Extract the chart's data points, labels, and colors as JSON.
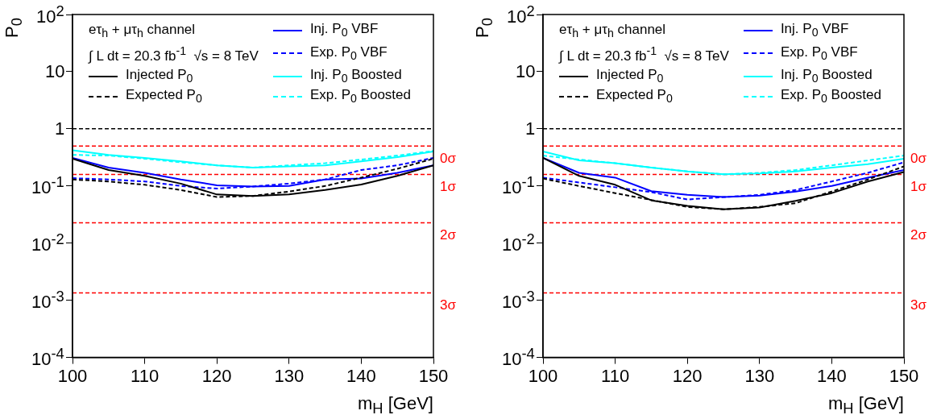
{
  "chart_data": [
    {
      "type": "line",
      "xlabel": "m$_{H}$ [GeV]",
      "ylabel": "P$_{0}$",
      "annotations": [
        "eτ$_{h}$ + μτ$_{h}$ channel",
        "∫ L dt = 20.3 fb$^{-1}$  √s = 8 TeV"
      ],
      "x": [
        100,
        105,
        110,
        115,
        120,
        125,
        130,
        135,
        140,
        145,
        150
      ],
      "xlim": [
        100,
        150
      ],
      "xticks": [
        100,
        110,
        120,
        130,
        140,
        150
      ],
      "ylim": [
        0.0001,
        100
      ],
      "yticks": [
        {
          "value": 0.0001,
          "label": "10$^{-4}$"
        },
        {
          "value": 0.001,
          "label": "10$^{-3}$"
        },
        {
          "value": 0.01,
          "label": "10$^{-2}$"
        },
        {
          "value": 0.1,
          "label": "10$^{-1}$"
        },
        {
          "value": 1,
          "label": "1"
        },
        {
          "value": 10,
          "label": "10"
        },
        {
          "value": 100,
          "label": "10$^{2}$"
        }
      ],
      "log": "y",
      "grid": false,
      "legend": "top",
      "marker": "none",
      "ref_lines": [
        {
          "axis": "y",
          "value": 1,
          "label": null,
          "color": "#000000",
          "line_style": "dashed"
        },
        {
          "axis": "y",
          "value": 0.5,
          "label": "0σ",
          "color": "#ff0000",
          "line_style": "dashed"
        },
        {
          "axis": "y",
          "value": 0.1587,
          "label": "1σ",
          "color": "#ff0000",
          "line_style": "dashed"
        },
        {
          "axis": "y",
          "value": 0.02275,
          "label": "2σ",
          "color": "#ff0000",
          "line_style": "dashed"
        },
        {
          "axis": "y",
          "value": 0.00135,
          "label": "3σ",
          "color": "#ff0000",
          "line_style": "dashed"
        }
      ],
      "series": [
        {
          "name": "Injected P$_{0}$",
          "color": "#000000",
          "line_style": "solid",
          "values": [
            0.3,
            0.19,
            0.15,
            0.11,
            0.071,
            0.067,
            0.071,
            0.085,
            0.106,
            0.15,
            0.23
          ]
        },
        {
          "name": "Expected P$_{0}$",
          "color": "#000000",
          "line_style": "dashed",
          "values": [
            0.13,
            0.12,
            0.105,
            0.085,
            0.064,
            0.067,
            0.08,
            0.1,
            0.14,
            0.2,
            0.3
          ]
        },
        {
          "name": "Inj. P$_{0}$ VBF",
          "color": "#0000ff",
          "line_style": "solid",
          "values": [
            0.31,
            0.21,
            0.17,
            0.13,
            0.103,
            0.098,
            0.1,
            0.13,
            0.135,
            0.17,
            0.23
          ]
        },
        {
          "name": "Exp. P$_{0}$ VBF",
          "color": "#0000ff",
          "line_style": "dashed",
          "values": [
            0.137,
            0.13,
            0.12,
            0.1,
            0.09,
            0.098,
            0.11,
            0.13,
            0.19,
            0.23,
            0.31
          ]
        },
        {
          "name": "Inj. P$_{0}$ Boosted",
          "color": "#00ffff",
          "line_style": "solid",
          "values": [
            0.42,
            0.35,
            0.31,
            0.27,
            0.23,
            0.21,
            0.22,
            0.23,
            0.27,
            0.32,
            0.4
          ]
        },
        {
          "name": "Exp. P$_{0}$ Boosted",
          "color": "#00ffff",
          "line_style": "dashed",
          "values": [
            0.35,
            0.34,
            0.3,
            0.26,
            0.23,
            0.21,
            0.23,
            0.25,
            0.29,
            0.34,
            0.41
          ]
        }
      ]
    },
    {
      "type": "line",
      "xlabel": "m$_{H}$ [GeV]",
      "ylabel": "P$_{0}$",
      "annotations": [
        "eτ$_{h}$ + μτ$_{h}$ channel",
        "∫ L dt = 20.3 fb$^{-1}$  √s = 8 TeV"
      ],
      "x": [
        100,
        105,
        110,
        115,
        120,
        125,
        130,
        135,
        140,
        145,
        150
      ],
      "xlim": [
        100,
        150
      ],
      "xticks": [
        100,
        110,
        120,
        130,
        140,
        150
      ],
      "ylim": [
        0.0001,
        100
      ],
      "yticks": [
        {
          "value": 0.0001,
          "label": "10$^{-4}$"
        },
        {
          "value": 0.001,
          "label": "10$^{-3}$"
        },
        {
          "value": 0.01,
          "label": "10$^{-2}$"
        },
        {
          "value": 0.1,
          "label": "10$^{-1}$"
        },
        {
          "value": 1,
          "label": "1"
        },
        {
          "value": 10,
          "label": "10"
        },
        {
          "value": 100,
          "label": "10$^{2}$"
        }
      ],
      "log": "y",
      "grid": false,
      "legend": "top",
      "marker": "none",
      "ref_lines": [
        {
          "axis": "y",
          "value": 1,
          "label": null,
          "color": "#000000",
          "line_style": "dashed"
        },
        {
          "axis": "y",
          "value": 0.5,
          "label": "0σ",
          "color": "#ff0000",
          "line_style": "dashed"
        },
        {
          "axis": "y",
          "value": 0.1587,
          "label": "1σ",
          "color": "#ff0000",
          "line_style": "dashed"
        },
        {
          "axis": "y",
          "value": 0.02275,
          "label": "2σ",
          "color": "#ff0000",
          "line_style": "dashed"
        },
        {
          "axis": "y",
          "value": 0.00135,
          "label": "3σ",
          "color": "#ff0000",
          "line_style": "dashed"
        }
      ],
      "series": [
        {
          "name": "Injected P$_{0}$",
          "color": "#000000",
          "line_style": "solid",
          "values": [
            0.31,
            0.15,
            0.105,
            0.056,
            0.045,
            0.039,
            0.042,
            0.055,
            0.075,
            0.12,
            0.175
          ]
        },
        {
          "name": "Expected P$_{0}$",
          "color": "#000000",
          "line_style": "dashed",
          "values": [
            0.135,
            0.1,
            0.075,
            0.057,
            0.043,
            0.039,
            0.043,
            0.05,
            0.08,
            0.13,
            0.22
          ]
        },
        {
          "name": "Inj. P$_{0}$ VBF",
          "color": "#0000ff",
          "line_style": "solid",
          "values": [
            0.31,
            0.17,
            0.14,
            0.081,
            0.07,
            0.064,
            0.068,
            0.08,
            0.1,
            0.14,
            0.19
          ]
        },
        {
          "name": "Exp. P$_{0}$ VBF",
          "color": "#0000ff",
          "line_style": "dashed",
          "values": [
            0.14,
            0.115,
            0.095,
            0.078,
            0.058,
            0.064,
            0.07,
            0.085,
            0.12,
            0.17,
            0.26
          ]
        },
        {
          "name": "Inj. P$_{0}$ Boosted",
          "color": "#00ffff",
          "line_style": "solid",
          "values": [
            0.4,
            0.28,
            0.25,
            0.21,
            0.18,
            0.16,
            0.165,
            0.18,
            0.21,
            0.24,
            0.3
          ]
        },
        {
          "name": "Exp. P$_{0}$ Boosted",
          "color": "#00ffff",
          "line_style": "dashed",
          "values": [
            0.34,
            0.29,
            0.25,
            0.21,
            0.18,
            0.16,
            0.17,
            0.19,
            0.23,
            0.28,
            0.34
          ]
        }
      ]
    }
  ]
}
